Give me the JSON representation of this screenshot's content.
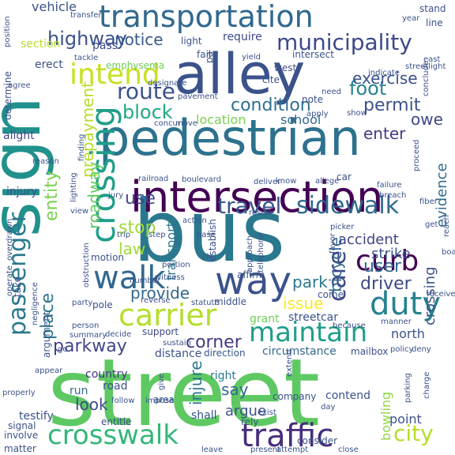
{
  "words": [
    {
      "text": "street",
      "color": "#5ec962"
    },
    {
      "text": "sign",
      "color": "#21918c"
    },
    {
      "text": "bus",
      "color": "#2a788e"
    },
    {
      "text": "pedestrian",
      "color": "#2c728e"
    },
    {
      "text": "alley",
      "color": "#3b528b"
    },
    {
      "text": "intersection",
      "color": "#440154"
    },
    {
      "text": "transportation",
      "color": "#31688e"
    },
    {
      "text": "crossing",
      "color": "#1f9e89"
    },
    {
      "text": "way",
      "color": "#3b528b"
    },
    {
      "text": "crosswalk",
      "color": "#35b779"
    },
    {
      "text": "traffic",
      "color": "#472d7b"
    },
    {
      "text": "carrier",
      "color": "#b5de2b"
    },
    {
      "text": "passenger",
      "color": "#2a788e"
    },
    {
      "text": "duty",
      "color": "#26828e"
    },
    {
      "text": "walk",
      "color": "#31688e"
    },
    {
      "text": "maintain",
      "color": "#1f9e89"
    },
    {
      "text": "curb",
      "color": "#440154"
    },
    {
      "text": "intend",
      "color": "#c8e020"
    },
    {
      "text": "municipality",
      "color": "#3e4989"
    },
    {
      "text": "sidewalk",
      "color": "#31688e"
    },
    {
      "text": "care",
      "color": "#3e4989"
    },
    {
      "text": "travel",
      "color": "#38588c"
    },
    {
      "text": "route",
      "color": "#3b528b"
    },
    {
      "text": "condition",
      "color": "#2d708e"
    },
    {
      "text": "highway",
      "color": "#3b528b"
    },
    {
      "text": "block",
      "color": "#22a884"
    },
    {
      "text": "foot",
      "color": "#25858e"
    },
    {
      "text": "use",
      "color": "#3e4989"
    },
    {
      "text": "permit",
      "color": "#3b528b"
    },
    {
      "text": "user",
      "color": "#31688e"
    },
    {
      "text": "driver",
      "color": "#3e4989"
    },
    {
      "text": "stop",
      "color": "#a0da39"
    },
    {
      "text": "entity",
      "color": "#7ad151"
    },
    {
      "text": "prepayment",
      "color": "#b5de2b"
    },
    {
      "text": "place",
      "color": "#2a788e"
    },
    {
      "text": "parkway",
      "color": "#414487"
    },
    {
      "text": "corner",
      "color": "#443983"
    },
    {
      "text": "roadway",
      "color": "#5ec962"
    },
    {
      "text": "exercise",
      "color": "#3b528b"
    },
    {
      "text": "enter",
      "color": "#443983"
    },
    {
      "text": "owe",
      "color": "#3e4989"
    },
    {
      "text": "provide",
      "color": "#31688e"
    },
    {
      "text": "bicycle",
      "color": "#31688e"
    },
    {
      "text": "city",
      "color": "#b5de2b"
    },
    {
      "text": "evidence",
      "color": "#31688e"
    },
    {
      "text": "notice",
      "color": "#38588c"
    },
    {
      "text": "vehicle",
      "color": "#3b528b"
    },
    {
      "text": "law",
      "color": "#a0da39"
    },
    {
      "text": "look",
      "color": "#3e4989"
    },
    {
      "text": "say",
      "color": "#31688e"
    },
    {
      "text": "injure",
      "color": "#2a788e"
    },
    {
      "text": "argue",
      "color": "#3b528b"
    },
    {
      "text": "strike",
      "color": "#3b528b"
    },
    {
      "text": "park",
      "color": "#2a788e"
    },
    {
      "text": "issue",
      "color": "#fde725"
    },
    {
      "text": "accident",
      "color": "#414487"
    },
    {
      "text": "location",
      "color": "#7ad151"
    },
    {
      "text": "school",
      "color": "#31688e"
    },
    {
      "text": "north",
      "color": "#3b528b"
    },
    {
      "text": "crossing",
      "color": "#3b528b"
    },
    {
      "text": "bowling",
      "color": "#8fd744"
    },
    {
      "text": "transport",
      "color": "#2a788e"
    },
    {
      "text": "section",
      "color": "#b5de2b"
    },
    {
      "text": "pass",
      "color": "#3e4989"
    },
    {
      "text": "require",
      "color": "#3e4989"
    },
    {
      "text": "light",
      "color": "#3b528b"
    },
    {
      "text": "emphysema",
      "color": "#6ece58"
    },
    {
      "text": "injury",
      "color": "#3b528b"
    },
    {
      "text": "alight",
      "color": "#3e4989"
    },
    {
      "text": "road",
      "color": "#3b528b"
    },
    {
      "text": "run",
      "color": "#31688e"
    },
    {
      "text": "country",
      "color": "#443983"
    },
    {
      "text": "testify",
      "color": "#3b528b"
    },
    {
      "text": "right",
      "color": "#2a788e"
    },
    {
      "text": "shall",
      "color": "#3b528b"
    },
    {
      "text": "company",
      "color": "#3b528b"
    },
    {
      "text": "contend",
      "color": "#3b528b"
    },
    {
      "text": "point",
      "color": "#3b528b"
    },
    {
      "text": "grant",
      "color": "#6ece58"
    },
    {
      "text": "streetcar",
      "color": "#3b528b"
    },
    {
      "text": "mailbox",
      "color": "#3b528b"
    },
    {
      "text": "circumstance",
      "color": "#31688e"
    },
    {
      "text": "distance",
      "color": "#3b528b"
    },
    {
      "text": "direction",
      "color": "#38588c"
    },
    {
      "text": "come",
      "color": "#3b528b"
    },
    {
      "text": "support",
      "color": "#3e4989"
    },
    {
      "text": "middle",
      "color": "#3b528b"
    },
    {
      "text": "pole",
      "color": "#3b528b"
    },
    {
      "text": "motion",
      "color": "#3b528b"
    },
    {
      "text": "affirm",
      "color": "#3b528b"
    },
    {
      "text": "establish",
      "color": "#3b528b"
    },
    {
      "text": "west",
      "color": "#3b528b"
    },
    {
      "text": "cite",
      "color": "#3b528b"
    },
    {
      "text": "fail",
      "color": "#3b528b"
    },
    {
      "text": "intersect",
      "color": "#3b528b"
    },
    {
      "text": "stand",
      "color": "#3b528b"
    },
    {
      "text": "line",
      "color": "#3b528b"
    },
    {
      "text": "erect",
      "color": "#3b528b"
    },
    {
      "text": "determine",
      "color": "#3b528b"
    },
    {
      "text": "agree",
      "color": "#3b528b"
    },
    {
      "text": "position",
      "color": "#3b528b"
    },
    {
      "text": "matter",
      "color": "#3b528b"
    },
    {
      "text": "involve",
      "color": "#3b528b"
    },
    {
      "text": "properly",
      "color": "#3b528b"
    },
    {
      "text": "signal",
      "color": "#3b528b"
    },
    {
      "text": "entitle",
      "color": "#3b528b"
    },
    {
      "text": "rely",
      "color": "#3b528b"
    },
    {
      "text": "exist",
      "color": "#3b528b"
    },
    {
      "text": "consider",
      "color": "#3b528b"
    },
    {
      "text": "policy",
      "color": "#3b528b"
    },
    {
      "text": "parking",
      "color": "#3b528b"
    },
    {
      "text": "deny",
      "color": "#3b528b"
    },
    {
      "text": "manner",
      "color": "#3b528b"
    },
    {
      "text": "because",
      "color": "#3b528b"
    },
    {
      "text": "sustain",
      "color": "#3b528b"
    },
    {
      "text": "decide",
      "color": "#3b528b"
    },
    {
      "text": "number",
      "color": "#3b528b"
    },
    {
      "text": "portion",
      "color": "#3b528b"
    },
    {
      "text": "witness",
      "color": "#3b528b"
    },
    {
      "text": "step",
      "color": "#3b528b"
    },
    {
      "text": "trip",
      "color": "#3b528b"
    },
    {
      "text": "action",
      "color": "#3b528b"
    },
    {
      "text": "base",
      "color": "#3b528b"
    },
    {
      "text": "result",
      "color": "#3b528b"
    },
    {
      "text": "fiber",
      "color": "#3b528b"
    },
    {
      "text": "breach",
      "color": "#3b528b"
    },
    {
      "text": "failure",
      "color": "#3b528b"
    },
    {
      "text": "allege",
      "color": "#3b528b"
    },
    {
      "text": "deliver",
      "color": "#3b528b"
    },
    {
      "text": "boulevard",
      "color": "#3b528b"
    },
    {
      "text": "railroad",
      "color": "#3b528b"
    },
    {
      "text": "jury",
      "color": "#3b528b"
    },
    {
      "text": "finding",
      "color": "#3b528b"
    },
    {
      "text": "lighting",
      "color": "#3b528b"
    },
    {
      "text": "obstruction",
      "color": "#3b528b"
    },
    {
      "text": "designate",
      "color": "#3b528b"
    },
    {
      "text": "concur",
      "color": "#3b528b"
    },
    {
      "text": "move",
      "color": "#3b528b"
    },
    {
      "text": "pavement",
      "color": "#3b528b"
    },
    {
      "text": "telephone",
      "color": "#3b528b"
    },
    {
      "text": "approach",
      "color": "#3b528b"
    },
    {
      "text": "note",
      "color": "#3b528b"
    },
    {
      "text": "apply",
      "color": "#3b528b"
    },
    {
      "text": "need",
      "color": "#3b528b"
    },
    {
      "text": "indicate",
      "color": "#3b528b"
    },
    {
      "text": "conclude",
      "color": "#3b528b"
    },
    {
      "text": "streetlight",
      "color": "#3b528b"
    },
    {
      "text": "east",
      "color": "#3b528b"
    },
    {
      "text": "year",
      "color": "#3b528b"
    },
    {
      "text": "transfer",
      "color": "#3b528b"
    },
    {
      "text": "tackle",
      "color": "#3b528b"
    },
    {
      "text": "pa",
      "color": "#3b528b"
    },
    {
      "text": "yield",
      "color": "#3b528b"
    },
    {
      "text": "reason",
      "color": "#3b528b"
    },
    {
      "text": "overdrawn",
      "color": "#3b528b"
    },
    {
      "text": "operate",
      "color": "#3b528b"
    },
    {
      "text": "take",
      "color": "#3b528b"
    },
    {
      "text": "view",
      "color": "#3b528b"
    },
    {
      "text": "negligence",
      "color": "#3b528b"
    },
    {
      "text": "party",
      "color": "#3b528b"
    },
    {
      "text": "summary",
      "color": "#3b528b"
    },
    {
      "text": "argument",
      "color": "#3b528b"
    },
    {
      "text": "appear",
      "color": "#3b528b"
    },
    {
      "text": "follow",
      "color": "#3b528b"
    },
    {
      "text": "impose",
      "color": "#3b528b"
    },
    {
      "text": "give",
      "color": "#3b528b"
    },
    {
      "text": "area",
      "color": "#3b528b"
    },
    {
      "text": "day",
      "color": "#3b528b"
    },
    {
      "text": "extend",
      "color": "#3b528b"
    },
    {
      "text": "present",
      "color": "#3b528b"
    },
    {
      "text": "attempt",
      "color": "#3b528b"
    },
    {
      "text": "leave",
      "color": "#3b528b"
    },
    {
      "text": "close",
      "color": "#3b528b"
    },
    {
      "text": "charge",
      "color": "#3b528b"
    },
    {
      "text": "reach",
      "color": "#3b528b"
    },
    {
      "text": "board",
      "color": "#3b528b"
    },
    {
      "text": "receive",
      "color": "#3b528b"
    },
    {
      "text": "picker",
      "color": "#3b528b"
    },
    {
      "text": "favor",
      "color": "#3b528b"
    },
    {
      "text": "ch",
      "color": "#3b528b"
    },
    {
      "text": "proceed",
      "color": "#3b528b"
    },
    {
      "text": "get",
      "color": "#3b528b"
    },
    {
      "text": "know",
      "color": "#3b528b"
    },
    {
      "text": "car",
      "color": "#3b528b"
    },
    {
      "text": "show",
      "color": "#3b528b"
    },
    {
      "text": "reverse",
      "color": "#3b528b"
    },
    {
      "text": "statute",
      "color": "#3b528b"
    },
    {
      "text": "person",
      "color": "#3b528b"
    },
    {
      "text": "go",
      "color": "#3b528b"
    }
  ]
}
